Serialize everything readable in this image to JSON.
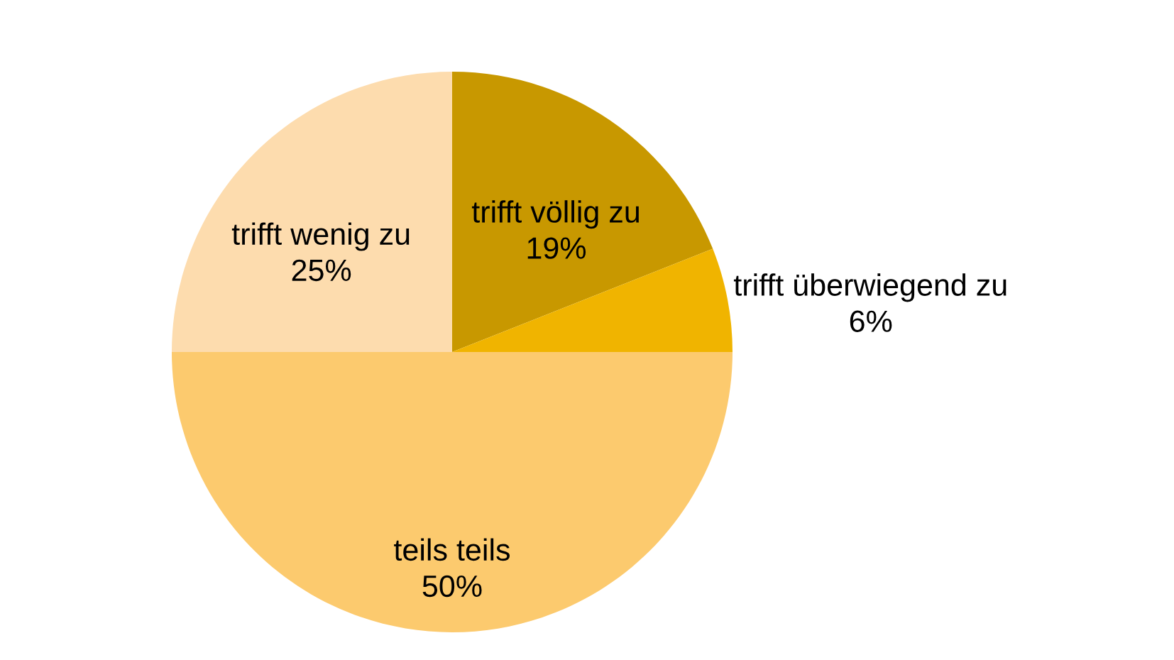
{
  "chart_data": {
    "type": "pie",
    "categories": [
      "trifft völlig zu",
      "trifft überwiegend zu",
      "teils teils",
      "trifft wenig zu"
    ],
    "values": [
      19,
      6,
      50,
      25
    ],
    "value_labels": [
      "19%",
      "6%",
      "50%",
      "25%"
    ],
    "colors": [
      "#c89800",
      "#f0b400",
      "#fcca6e",
      "#fddcae"
    ]
  }
}
